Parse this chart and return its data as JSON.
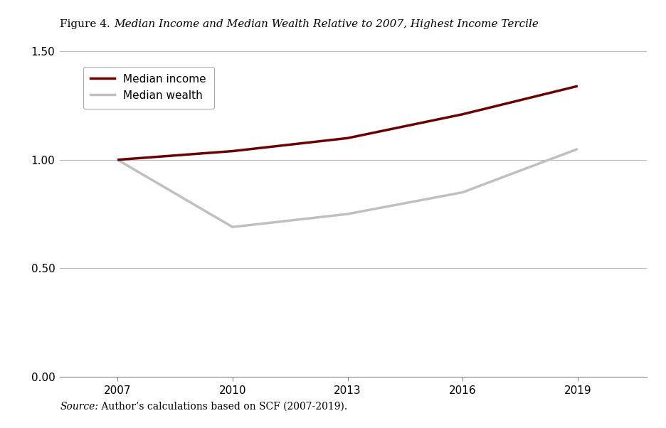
{
  "title_plain": "Figure 4. ",
  "title_italic": "Median Income and Median Wealth Relative to 2007, Highest Income Tercile",
  "years": [
    2007,
    2010,
    2013,
    2016,
    2019
  ],
  "median_income": [
    1.0,
    1.04,
    1.1,
    1.21,
    1.34
  ],
  "median_wealth": [
    1.0,
    0.69,
    0.75,
    0.85,
    1.05
  ],
  "income_color": "#6B0000",
  "wealth_color": "#C0C0C0",
  "income_label": "Median income",
  "wealth_label": "Median wealth",
  "ylim": [
    0.0,
    1.5
  ],
  "yticks": [
    0.0,
    0.5,
    1.0,
    1.5
  ],
  "xticks": [
    2007,
    2010,
    2013,
    2016,
    2019
  ],
  "line_width": 2.5,
  "source_italic": "Source:",
  "source_rest": " Author’s calculations based on SCF (2007-2019).",
  "background_color": "#FFFFFF",
  "grid_color": "#AAAAAA",
  "grid_alpha": 0.8
}
